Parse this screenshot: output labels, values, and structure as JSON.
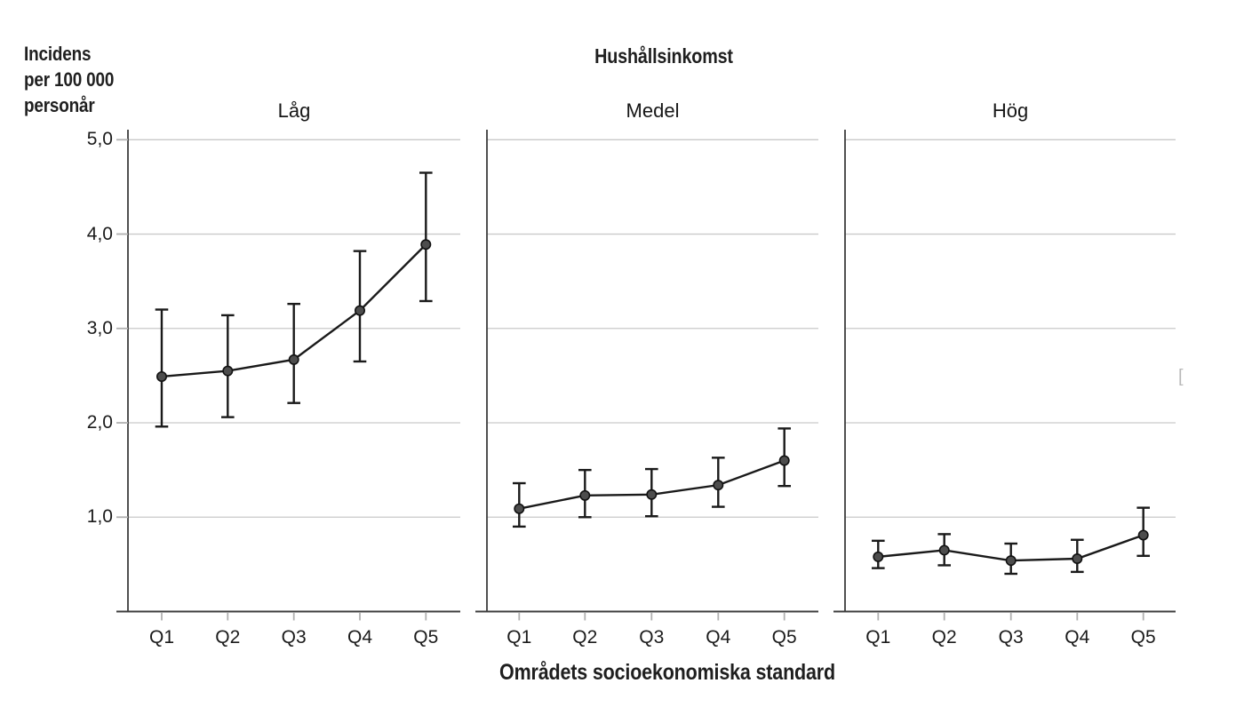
{
  "figure": {
    "top_title": "Hushållsinkomst",
    "y_axis_title_lines": [
      "Incidens",
      "per 100 000",
      "personår"
    ],
    "x_axis_title": "Områdets socioekonomiska standard",
    "stray_glyph": "["
  },
  "colors": {
    "background": "#ffffff",
    "grid": "#c9c9c9",
    "axis": "#3d3d3d",
    "tick": "#b0b0b0",
    "series_line": "#1a1a1a",
    "error_bar": "#1a1a1a",
    "marker_fill": "#4d4d4d",
    "marker_stroke": "#111111",
    "text": "#1f1f1f"
  },
  "chart_data": {
    "type": "line",
    "layout_hint": "three side-by-side facet panels sharing one y-axis, error bars on each point, horizontal gridlines on",
    "title": "Hushållsinkomst",
    "xlabel": "Områdets socioekonomiska standard",
    "ylabel": "Incidens per 100 000 personår",
    "categories": [
      "Q1",
      "Q2",
      "Q3",
      "Q4",
      "Q5"
    ],
    "y_axis": {
      "tick_labels": [
        "5,0",
        "4,0",
        "3,0",
        "2,0",
        "1,0"
      ],
      "tick_values": [
        5,
        4,
        3,
        2,
        1
      ],
      "ylim": [
        0,
        5.1
      ],
      "decimal_style": "comma"
    },
    "error_bars": true,
    "panels": [
      {
        "title": "Låg",
        "values": [
          2.49,
          2.55,
          2.67,
          3.19,
          3.89
        ],
        "ci_low": [
          1.96,
          2.06,
          2.21,
          2.65,
          3.29
        ],
        "ci_high": [
          3.2,
          3.14,
          3.26,
          3.82,
          4.65
        ]
      },
      {
        "title": "Medel",
        "values": [
          1.09,
          1.23,
          1.24,
          1.34,
          1.6
        ],
        "ci_low": [
          0.9,
          1.0,
          1.01,
          1.11,
          1.33
        ],
        "ci_high": [
          1.36,
          1.5,
          1.51,
          1.63,
          1.94
        ]
      },
      {
        "title": "Hög",
        "values": [
          0.58,
          0.65,
          0.54,
          0.56,
          0.81
        ],
        "ci_low": [
          0.46,
          0.49,
          0.4,
          0.42,
          0.59
        ],
        "ci_high": [
          0.75,
          0.82,
          0.72,
          0.76,
          1.1
        ]
      }
    ]
  }
}
